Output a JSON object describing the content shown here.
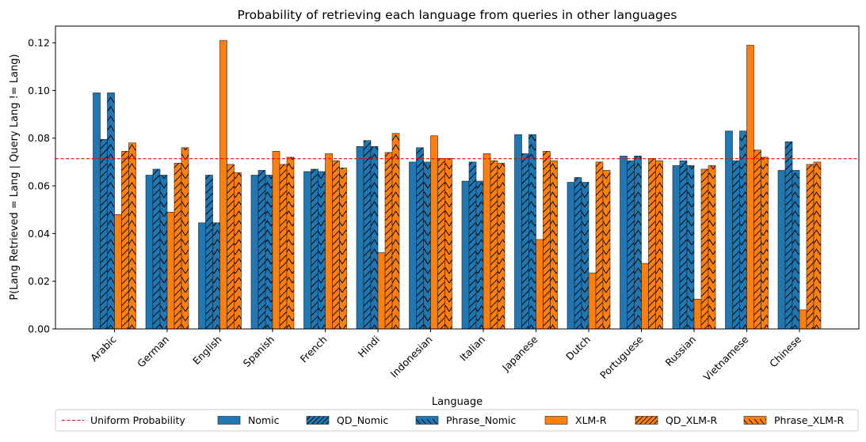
{
  "chart_data": {
    "type": "bar",
    "title": "Probability of retrieving each language from queries in other languages",
    "xlabel": "Language",
    "ylabel": "P(Lang Retrieved = Lang | Query Lang != Lang)",
    "ylim": [
      0,
      0.127
    ],
    "yticks": [
      0.0,
      0.02,
      0.04,
      0.06,
      0.08,
      0.1,
      0.12
    ],
    "ytick_labels": [
      "0.00",
      "0.02",
      "0.04",
      "0.06",
      "0.08",
      "0.10",
      "0.12"
    ],
    "categories": [
      "Arabic",
      "German",
      "English",
      "Spanish",
      "French",
      "Hindi",
      "Indonesian",
      "Italian",
      "Japanese",
      "Dutch",
      "Portuguese",
      "Russian",
      "Vietnamese",
      "Chinese"
    ],
    "reference_line": {
      "name": "Uniform Probability",
      "value": 0.0714,
      "color": "#ff0000",
      "style": "dashed"
    },
    "series": [
      {
        "name": "Nomic",
        "color": "#1f77b4",
        "hatch": "none",
        "values": [
          0.099,
          0.0645,
          0.0445,
          0.0645,
          0.066,
          0.0765,
          0.07,
          0.062,
          0.0815,
          0.0615,
          0.0725,
          0.0685,
          0.083,
          0.0665
        ]
      },
      {
        "name": "QD_Nomic",
        "color": "#1f77b4",
        "hatch": "slash",
        "values": [
          0.0795,
          0.067,
          0.0645,
          0.0665,
          0.067,
          0.079,
          0.076,
          0.07,
          0.0735,
          0.0635,
          0.0705,
          0.0705,
          0.0705,
          0.0785
        ]
      },
      {
        "name": "Phrase_Nomic",
        "color": "#1f77b4",
        "hatch": "chevron",
        "values": [
          0.099,
          0.0645,
          0.0445,
          0.0645,
          0.066,
          0.0765,
          0.07,
          0.062,
          0.0815,
          0.0615,
          0.0725,
          0.0685,
          0.083,
          0.0665
        ]
      },
      {
        "name": "XLM-R",
        "color": "#ff7f0e",
        "hatch": "none",
        "values": [
          0.048,
          0.049,
          0.121,
          0.0745,
          0.0735,
          0.032,
          0.081,
          0.0735,
          0.0375,
          0.0235,
          0.0275,
          0.0125,
          0.119,
          0.008
        ]
      },
      {
        "name": "QD_XLM-R",
        "color": "#ff7f0e",
        "hatch": "slash",
        "values": [
          0.0745,
          0.0695,
          0.069,
          0.069,
          0.0705,
          0.074,
          0.0715,
          0.0705,
          0.0745,
          0.07,
          0.0715,
          0.067,
          0.075,
          0.069
        ]
      },
      {
        "name": "Phrase_XLM-R",
        "color": "#ff7f0e",
        "hatch": "chevron",
        "values": [
          0.078,
          0.076,
          0.0655,
          0.072,
          0.0675,
          0.082,
          0.0715,
          0.0695,
          0.0705,
          0.0665,
          0.0705,
          0.0685,
          0.072,
          0.07
        ]
      }
    ],
    "legend_position": "bottom-center",
    "grid": false
  }
}
